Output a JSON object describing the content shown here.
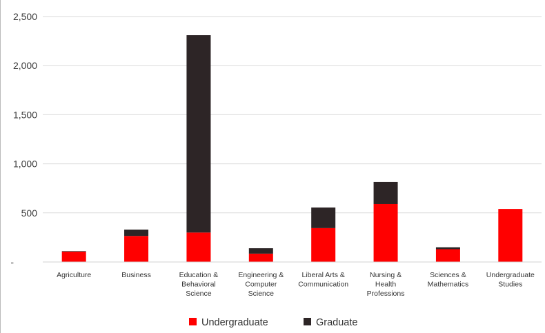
{
  "chart_data": {
    "type": "bar",
    "stacked": true,
    "categories": [
      "Agriculture",
      "Business",
      "Education & Behavioral Science",
      "Engineering & Computer Science",
      "Liberal Arts & Communication",
      "Nursing & Health Professions",
      "Sciences & Mathematics",
      "Undergraduate Studies"
    ],
    "category_lines": [
      [
        "Agriculture"
      ],
      [
        "Business"
      ],
      [
        "Education &",
        "Behavioral",
        "Science"
      ],
      [
        "Engineering &",
        "Computer",
        "Science"
      ],
      [
        "Liberal Arts &",
        "Communication"
      ],
      [
        "Nursing &",
        "Health",
        "Professions"
      ],
      [
        "Sciences &",
        "Mathematics"
      ],
      [
        "Undergraduate",
        "Studies"
      ]
    ],
    "series": [
      {
        "name": "Undergraduate",
        "color": "#ff0000",
        "values": [
          105,
          265,
          300,
          85,
          345,
          590,
          130,
          540
        ]
      },
      {
        "name": "Graduate",
        "color": "#2d2526",
        "values": [
          5,
          65,
          2010,
          55,
          210,
          225,
          20,
          0
        ]
      }
    ],
    "ylim": [
      0,
      2500
    ],
    "y_ticks": [
      0,
      500,
      1000,
      1500,
      2000,
      2500
    ],
    "y_tick_labels": [
      "-",
      "500",
      "1,000",
      "1,500",
      "2,000",
      "2,500"
    ],
    "grid": true,
    "legend": "bottom"
  }
}
